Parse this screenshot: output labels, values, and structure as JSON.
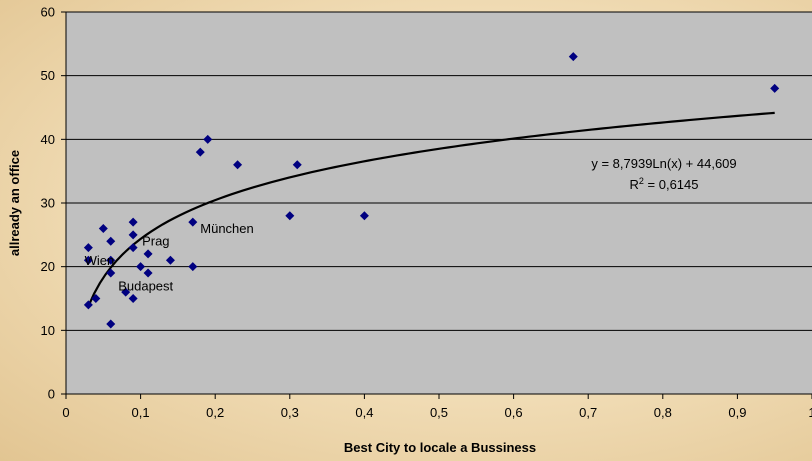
{
  "chart_data": {
    "type": "scatter",
    "title": "",
    "xlabel": "Best City to locale a Bussiness",
    "ylabel": "allready an office",
    "xlim": [
      0,
      1
    ],
    "ylim": [
      0,
      60
    ],
    "xticks": [
      "0",
      "0,1",
      "0,2",
      "0,3",
      "0,4",
      "0,5",
      "0,6",
      "0,7",
      "0,8",
      "0,9",
      "1"
    ],
    "yticks": [
      "0",
      "10",
      "20",
      "30",
      "40",
      "50",
      "60"
    ],
    "grid": "horizontal",
    "plot_color": "#c0c0c0",
    "marker_color": "#000080",
    "trendline_color": "#000000",
    "points": [
      {
        "x": 0.03,
        "y": 23
      },
      {
        "x": 0.03,
        "y": 21
      },
      {
        "x": 0.03,
        "y": 14
      },
      {
        "x": 0.04,
        "y": 15
      },
      {
        "x": 0.05,
        "y": 26
      },
      {
        "x": 0.06,
        "y": 24
      },
      {
        "x": 0.06,
        "y": 21
      },
      {
        "x": 0.06,
        "y": 19
      },
      {
        "x": 0.06,
        "y": 11
      },
      {
        "x": 0.08,
        "y": 16
      },
      {
        "x": 0.09,
        "y": 27
      },
      {
        "x": 0.09,
        "y": 25
      },
      {
        "x": 0.09,
        "y": 23
      },
      {
        "x": 0.09,
        "y": 15
      },
      {
        "x": 0.1,
        "y": 20
      },
      {
        "x": 0.11,
        "y": 22
      },
      {
        "x": 0.11,
        "y": 19
      },
      {
        "x": 0.14,
        "y": 21
      },
      {
        "x": 0.17,
        "y": 27
      },
      {
        "x": 0.17,
        "y": 20
      },
      {
        "x": 0.18,
        "y": 38
      },
      {
        "x": 0.19,
        "y": 40
      },
      {
        "x": 0.23,
        "y": 36
      },
      {
        "x": 0.3,
        "y": 28
      },
      {
        "x": 0.31,
        "y": 36
      },
      {
        "x": 0.4,
        "y": 28
      },
      {
        "x": 0.68,
        "y": 53
      },
      {
        "x": 0.95,
        "y": 48
      }
    ],
    "point_labels": [
      {
        "text": "Wien",
        "x": 0.025,
        "y": 21
      },
      {
        "text": "Prag",
        "x": 0.102,
        "y": 24
      },
      {
        "text": "Budapest",
        "x": 0.07,
        "y": 17
      },
      {
        "text": "München",
        "x": 0.18,
        "y": 26
      }
    ],
    "trendline": {
      "type": "logarithmic",
      "a": 8.7939,
      "b": 44.609,
      "x_range": [
        0.03,
        0.95
      ],
      "r_squared": 0.6145
    },
    "equation_text": "y = 8,7939Ln(x) + 44,609",
    "r2_prefix": "R",
    "r2_sup": "2",
    "r2_value": " = 0,6145"
  }
}
